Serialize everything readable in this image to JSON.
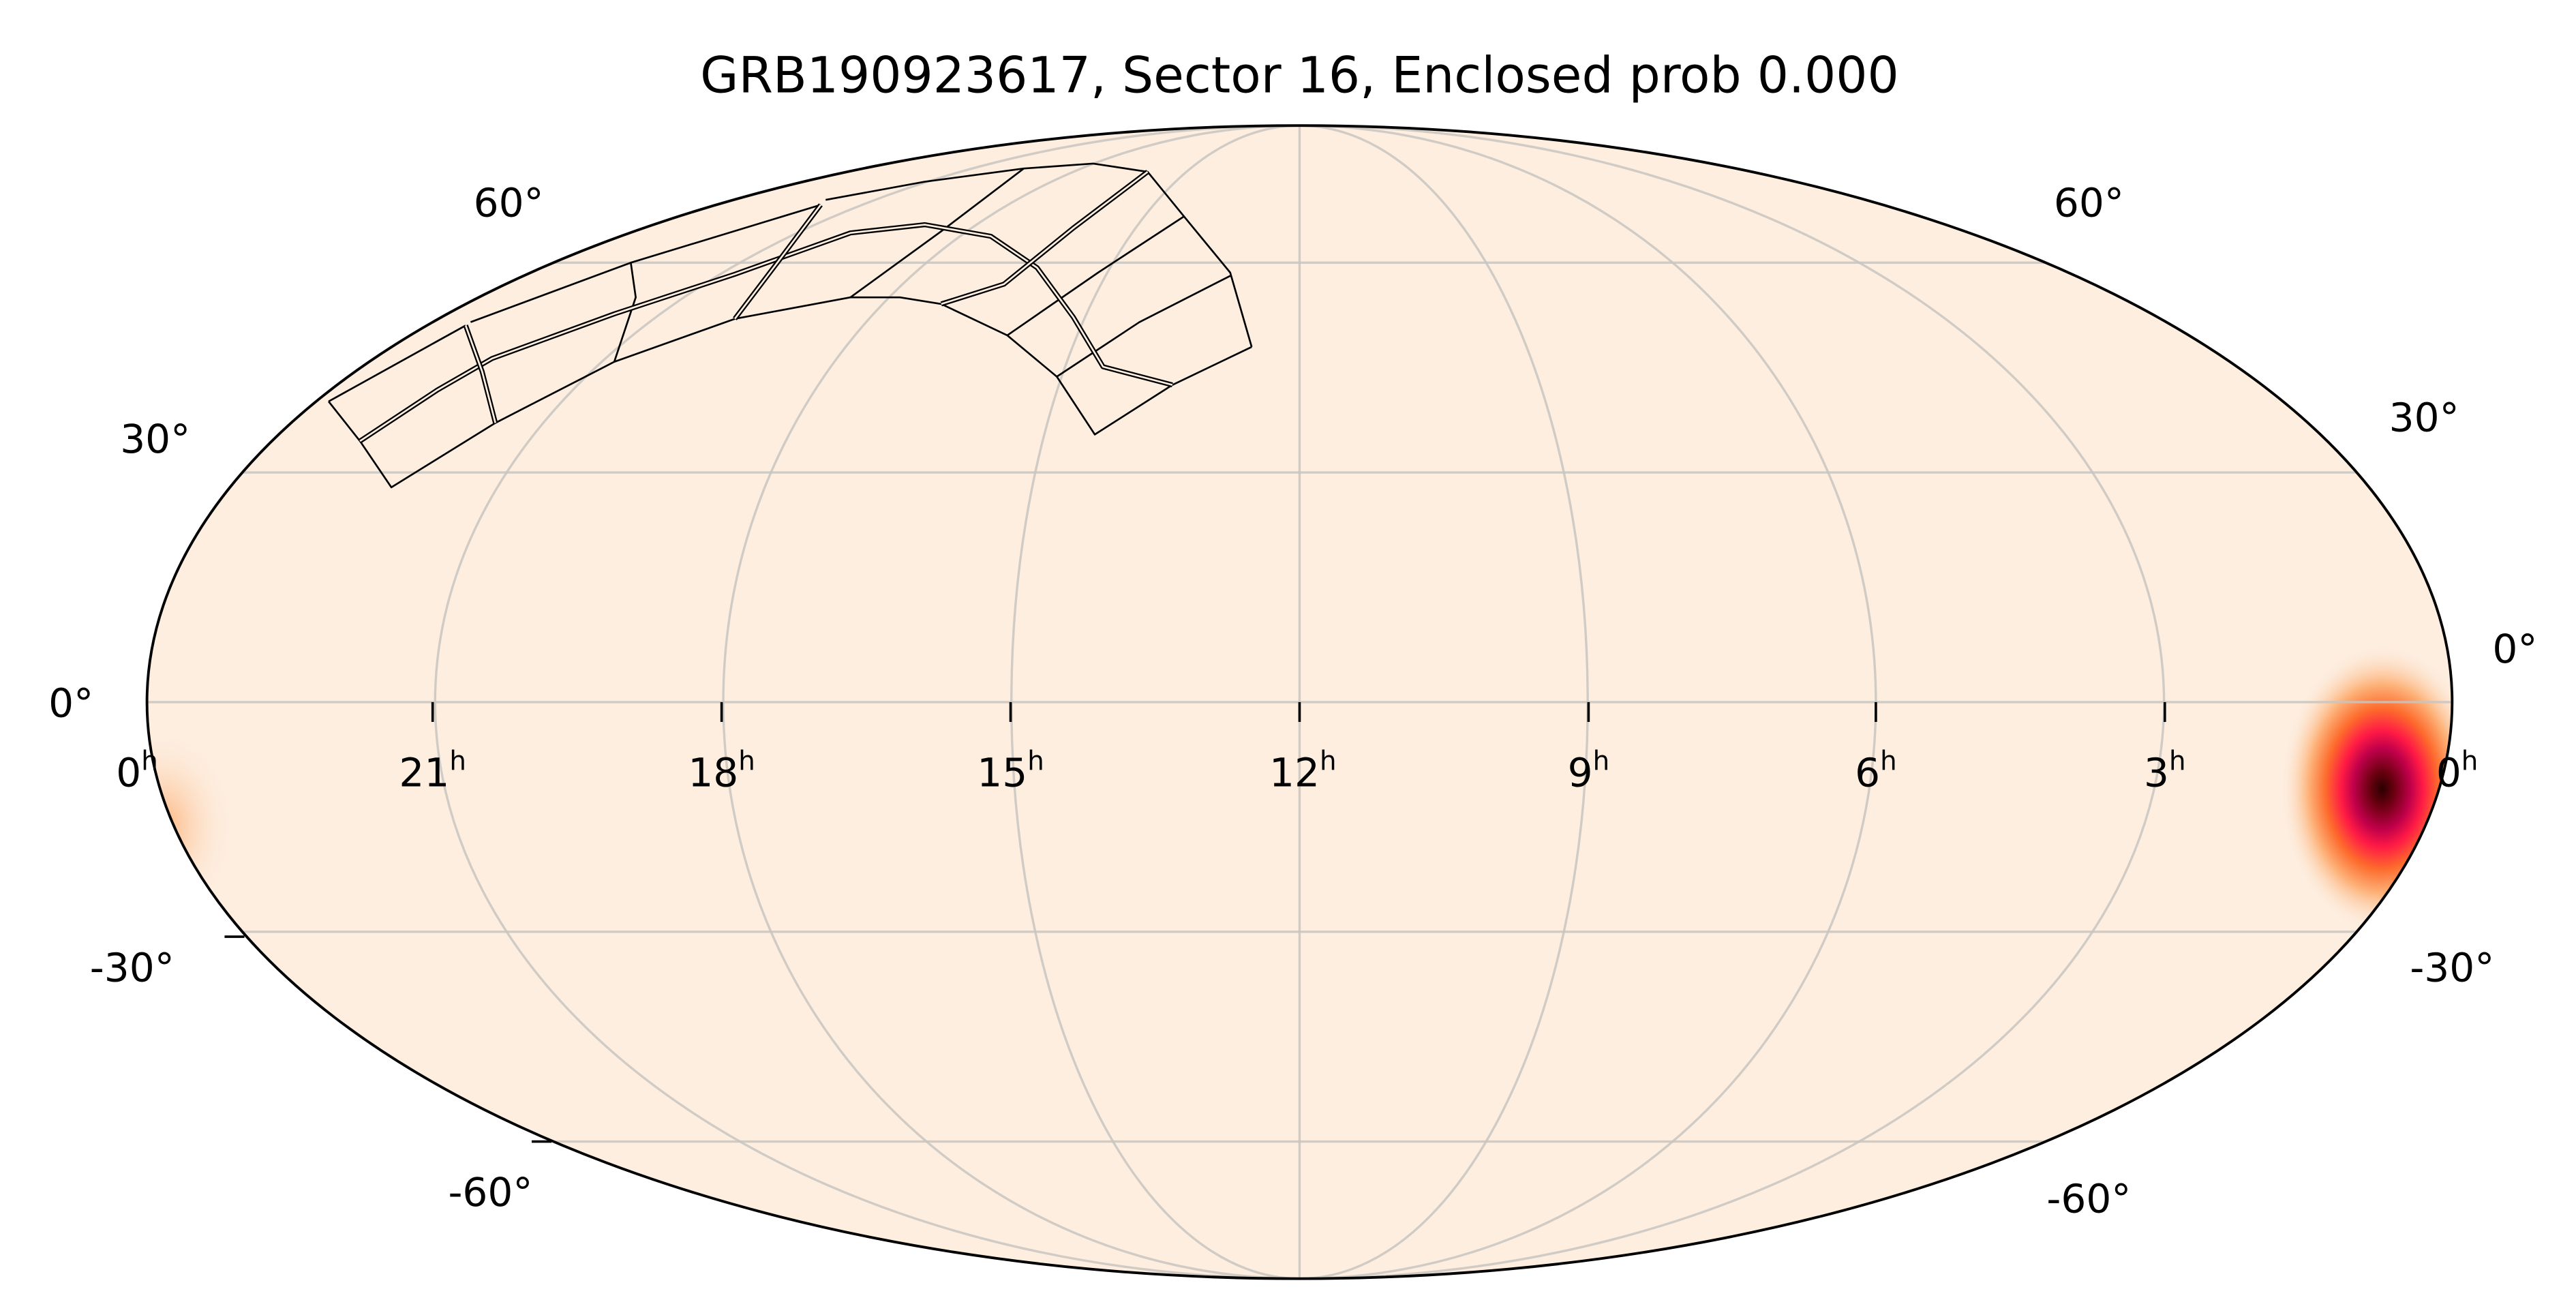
{
  "chart_data": {
    "type": "heatmap",
    "projection": "mollweide",
    "title": "GRB190923617, Sector 16, Enclosed prob 0.000",
    "grid": true,
    "x_ticks": [
      "0",
      "21",
      "18",
      "15",
      "12",
      "9",
      "6",
      "3",
      "0"
    ],
    "x_tick_unit": "h",
    "y_ticks_left": [
      "60°",
      "30°",
      "0°",
      "-30°",
      "-60°"
    ],
    "y_ticks_right": [
      "60°",
      "30°",
      "0°",
      "-30°",
      "-60°"
    ],
    "probability_peak": {
      "ra_deg": 9,
      "dec_deg": -11
    },
    "colormap": [
      "#fdeee0",
      "#fdb37a",
      "#fd6a2c",
      "#ff1a45",
      "#c0004a",
      "#3a0000"
    ],
    "background_color": "#fdeee0",
    "footprint": "TESS Sector 16 camera/CCD outlines"
  }
}
